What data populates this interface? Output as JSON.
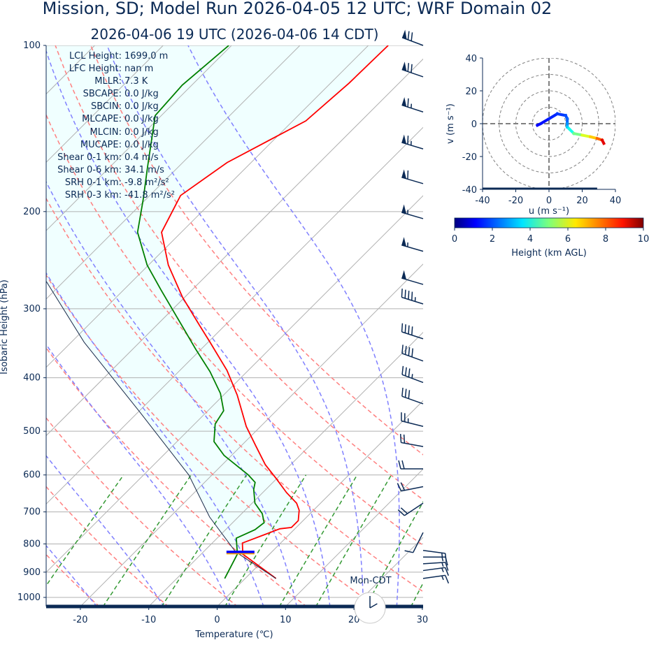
{
  "title": "Mission, SD; Model Run 2026-04-05 12 UTC; WRF Domain 02",
  "subtitle": "2026-04-06 19 UTC  (2026-04-06 14 CDT)",
  "stats": [
    {
      "label": "LCL Height:",
      "value": "1699.0 m"
    },
    {
      "label": "LFC Height:",
      "value": "nan m"
    },
    {
      "label": "MLLR:",
      "value": "7.3 K"
    },
    {
      "label": "SBCAPE:",
      "value": "0.0 J/kg"
    },
    {
      "label": "SBCIN:",
      "value": "0.0 J/kg"
    },
    {
      "label": "MLCAPE:",
      "value": "0.0 J/kg"
    },
    {
      "label": "MLCIN:",
      "value": "0.0 J/kg"
    },
    {
      "label": "MUCAPE:",
      "value": "0.0 J/kg"
    },
    {
      "label": "Shear 0-1 km:",
      "value": "0.4 m/s"
    },
    {
      "label": "Shear 0-6 km:",
      "value": "34.1 m/s"
    },
    {
      "label": "SRH 0-1 km:",
      "value": "-9.8 m²/s²"
    },
    {
      "label": "SRH 0-3 km:",
      "value": "-41.8 m²/s²"
    }
  ],
  "clock": {
    "label": "Mon-CDT",
    "hour": 14,
    "minute": 0
  },
  "colors": {
    "temperature": "#ff0000",
    "dewpoint": "#008000",
    "parcel": "#1a2a4a",
    "dry_adiabat": "#ff8080",
    "moist_adiabat": "#8080ff",
    "mixing_ratio": "#339933",
    "isotherm": "#b0b0b0",
    "cin_fill": "#f0ffff",
    "text": "#0b2a55",
    "lcl_marker": "#0000ff",
    "lcl_marker_under": "#ffa500"
  },
  "chart_data": [
    {
      "type": "line",
      "subtype": "skew-t",
      "xlabel": "Temperature (℃)",
      "ylabel": "Isobaric Height (hPa)",
      "xlim": [
        -25,
        30
      ],
      "ylim": [
        1040,
        100
      ],
      "yscale": "log",
      "xticks": [
        -20,
        -10,
        0,
        10,
        20,
        30
      ],
      "yticks": [
        100,
        200,
        300,
        400,
        500,
        600,
        700,
        800,
        900,
        1000
      ],
      "grid": true,
      "lcl_pressure": 827,
      "series": [
        {
          "key": "temperature",
          "p": [
            924,
            835,
            797,
            751,
            747,
            726,
            695,
            675,
            646,
            609,
            575,
            531,
            490,
            430,
            388,
            345,
            321,
            286,
            250,
            218,
            187,
            163,
            137,
            117,
            100
          ],
          "T": [
            4.5,
            -3.9,
            -5.6,
            -2.2,
            -0.7,
            -0.7,
            -2.1,
            -3.5,
            -6.5,
            -10.1,
            -13.7,
            -17.9,
            -22.1,
            -28.0,
            -33.1,
            -39.7,
            -43.8,
            -50.3,
            -57.1,
            -62.9,
            -65.5,
            -63.5,
            -58.1,
            -57.3,
            -57.1
          ]
        },
        {
          "key": "dewpoint",
          "p": [
            924,
            835,
            781,
            754,
            732,
            705,
            675,
            637,
            619,
            600,
            553,
            522,
            485,
            459,
            427,
            390,
            355,
            321,
            277,
            250,
            218,
            190,
            166,
            134,
            118,
            100
          ],
          "T": [
            -3.0,
            -4.7,
            -7.2,
            -5.7,
            -5.4,
            -7.0,
            -9.6,
            -11.8,
            -12.6,
            -14.7,
            -21.1,
            -24.6,
            -27.0,
            -27.7,
            -30.7,
            -35.4,
            -40.8,
            -46.4,
            -54.6,
            -60.2,
            -66.4,
            -70.4,
            -74.5,
            -80.9,
            -81.4,
            -80.4
          ]
        },
        {
          "key": "parcel",
          "p": [
            924,
            827,
            715,
            600,
            462,
            345,
            266,
            200,
            100
          ],
          "T": [
            4.5,
            -5.3,
            -14.2,
            -23.4,
            -39.7,
            -58.1,
            -72.9,
            -90,
            -120
          ]
        }
      ],
      "dry_adiabats_theta_c": [
        -40,
        -30,
        -20,
        -10,
        0,
        10,
        20,
        30,
        40,
        50,
        60
      ],
      "moist_adiabats_t0_c": [
        -20,
        -10,
        0,
        5,
        10,
        15,
        20,
        25
      ],
      "mixing_ratios_gkg": [
        0.4,
        1,
        2,
        4,
        7,
        10,
        16,
        24,
        32
      ],
      "wind_barbs_kt": [
        {
          "p": 100,
          "u": 64,
          "v": -24
        },
        {
          "p": 114,
          "u": 64,
          "v": -22
        },
        {
          "p": 132,
          "u": 62,
          "v": -20
        },
        {
          "p": 154,
          "u": 60,
          "v": -18
        },
        {
          "p": 178,
          "u": 58,
          "v": -17
        },
        {
          "p": 206,
          "u": 55,
          "v": -16
        },
        {
          "p": 236,
          "u": 52,
          "v": -15
        },
        {
          "p": 271,
          "u": 48,
          "v": -14
        },
        {
          "p": 294,
          "u": 45,
          "v": -14
        },
        {
          "p": 340,
          "u": 40,
          "v": -13
        },
        {
          "p": 373,
          "u": 36,
          "v": -13
        },
        {
          "p": 408,
          "u": 32,
          "v": -12
        },
        {
          "p": 446,
          "u": 28,
          "v": -10
        },
        {
          "p": 490,
          "u": 24,
          "v": -6
        },
        {
          "p": 533,
          "u": 22,
          "v": -4
        },
        {
          "p": 585,
          "u": 21,
          "v": 0
        },
        {
          "p": 630,
          "u": 20,
          "v": 4
        },
        {
          "p": 675,
          "u": 15,
          "v": 10
        },
        {
          "p": 763,
          "u": 5,
          "v": 10
        },
        {
          "p": 822,
          "u": -15,
          "v": 2
        },
        {
          "p": 845,
          "u": -16,
          "v": 0
        },
        {
          "p": 869,
          "u": -16,
          "v": -1
        },
        {
          "p": 894,
          "u": -15,
          "v": -2
        },
        {
          "p": 924,
          "u": -14,
          "v": -2
        }
      ]
    },
    {
      "type": "line",
      "subtype": "hodograph",
      "xlabel": "u (m s⁻¹)",
      "ylabel": "v (m s⁻¹)",
      "xlim": [
        -40,
        40
      ],
      "ylim": [
        -40,
        40
      ],
      "xticks": [
        -40,
        -20,
        0,
        20,
        40
      ],
      "yticks": [
        -40,
        -20,
        0,
        20,
        40
      ],
      "rings": [
        10,
        20,
        30,
        40
      ],
      "u": [
        -7,
        -5,
        0,
        5,
        10,
        11,
        11,
        11,
        12,
        15,
        20,
        25,
        29,
        32,
        33
      ],
      "v": [
        -1,
        0,
        3,
        6,
        5,
        3,
        0,
        -2,
        -3,
        -6,
        -7,
        -8,
        -9,
        -10,
        -12
      ],
      "height_km": [
        1.2,
        1.3,
        1.5,
        1.7,
        1.9,
        2.1,
        2.4,
        3.0,
        3.6,
        4.3,
        5.5,
        6.3,
        7.2,
        8.3,
        9.7
      ],
      "colorbar": {
        "label": "Height (km AGL)",
        "range": [
          0,
          10
        ],
        "ticks": [
          0,
          2,
          4,
          6,
          8,
          10
        ],
        "colormap": "jet"
      }
    }
  ]
}
